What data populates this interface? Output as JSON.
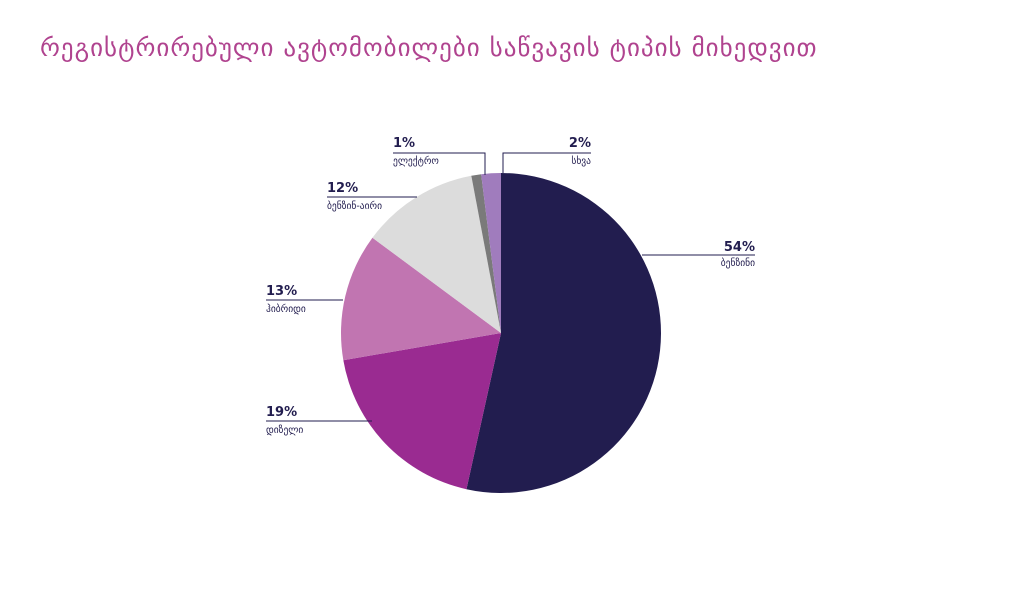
{
  "title": "რეგისტრირებული ავტომობილები საწვავის ტიპის მიხედვით",
  "chart_data": {
    "type": "pie",
    "title": "რეგისტრირებული ავტომობილები საწვავის ტიპის მიხედვით",
    "start_angle_deg": 0,
    "direction": "clockwise",
    "slices": [
      {
        "label": "ბენზინი",
        "value": 54,
        "display": "54%",
        "color": "#221d4f"
      },
      {
        "label": "დიზელი",
        "value": 19,
        "display": "19%",
        "color": "#9a2b91"
      },
      {
        "label": "ჰიბრიდი",
        "value": 13,
        "display": "13%",
        "color": "#c175b1"
      },
      {
        "label": "ბენზინ-აირი",
        "value": 12,
        "display": "12%",
        "color": "#dcdcdc"
      },
      {
        "label": "ელექტრო",
        "value": 1,
        "display": "1%",
        "color": "#7a7a7a"
      },
      {
        "label": "სხვა",
        "value": 2,
        "display": "2%",
        "color": "#a07cbd"
      }
    ]
  }
}
